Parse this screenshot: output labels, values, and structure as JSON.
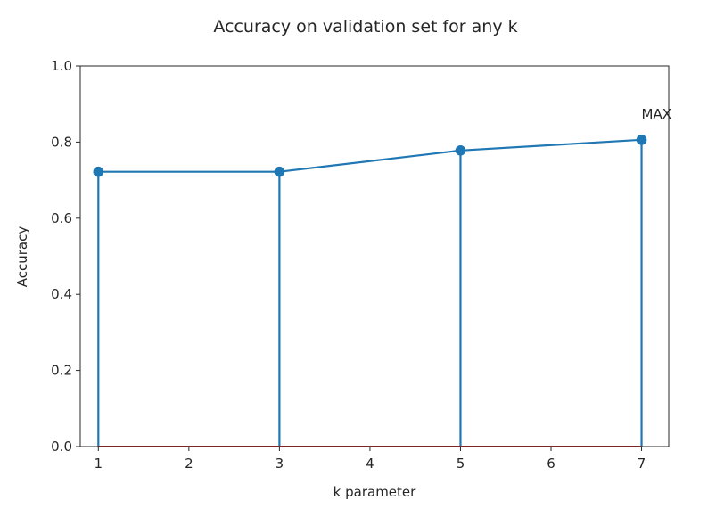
{
  "chart_data": {
    "type": "line",
    "title": "Accuracy on validation set for any k",
    "xlabel": "k parameter",
    "ylabel": "Accuracy",
    "xlim": [
      0.8,
      7.3
    ],
    "ylim": [
      0.0,
      1.0
    ],
    "xticks": [
      1,
      2,
      3,
      4,
      5,
      6,
      7
    ],
    "yticks": [
      0.0,
      0.2,
      0.4,
      0.6,
      0.8,
      1.0
    ],
    "xtick_labels": [
      "1",
      "2",
      "3",
      "4",
      "5",
      "6",
      "7"
    ],
    "ytick_labels": [
      "0.0",
      "0.2",
      "0.4",
      "0.6",
      "0.8",
      "1.0"
    ],
    "grid": false,
    "series": [
      {
        "x": [
          1,
          3,
          5,
          7
        ],
        "y": [
          0.722,
          0.722,
          0.778,
          0.806
        ],
        "color": "#1f77b4",
        "stem": true
      }
    ],
    "baseline": {
      "y": 0.0,
      "color": "#d62728"
    },
    "annotations": [
      {
        "text": "MAX",
        "x": 7,
        "y": 0.806
      }
    ]
  }
}
